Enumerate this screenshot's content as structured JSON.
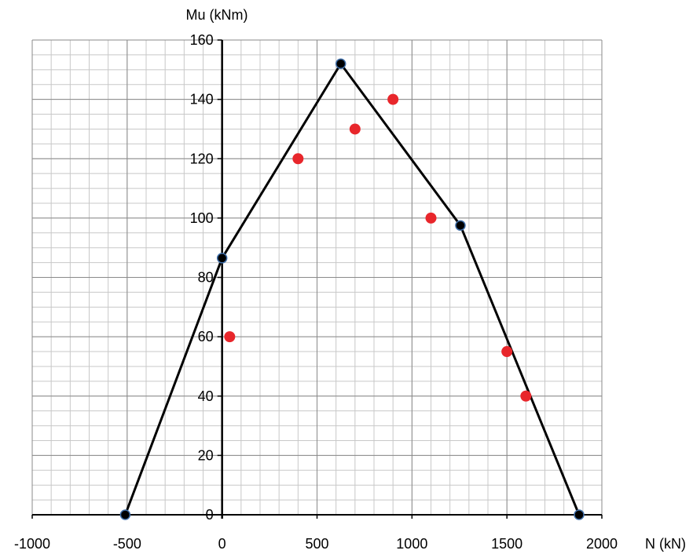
{
  "chart_data": {
    "type": "scatter",
    "title": "",
    "xlabel": "N (kN)",
    "ylabel": "Mu (kNm)",
    "xlim": [
      -1000,
      2000
    ],
    "ylim": [
      0,
      160
    ],
    "x_ticks": [
      -1000,
      -500,
      0,
      500,
      1000,
      1500,
      2000
    ],
    "y_ticks": [
      0,
      20,
      40,
      60,
      80,
      100,
      120,
      140,
      160
    ],
    "x_minor_step": 100,
    "y_minor_step": 5,
    "grid": true,
    "series": [
      {
        "style": "line-markers",
        "color": "#000000",
        "marker_color": "#000000",
        "points": [
          {
            "x": -510,
            "y": 0
          },
          {
            "x": 0,
            "y": 86.5
          },
          {
            "x": 625,
            "y": 152
          },
          {
            "x": 1255,
            "y": 97.5
          },
          {
            "x": 1880,
            "y": 0
          }
        ]
      },
      {
        "style": "markers",
        "color": "#e8262b",
        "points": [
          {
            "x": 40,
            "y": 60
          },
          {
            "x": 400,
            "y": 120
          },
          {
            "x": 700,
            "y": 130
          },
          {
            "x": 900,
            "y": 140
          },
          {
            "x": 1100,
            "y": 100
          },
          {
            "x": 1500,
            "y": 55
          },
          {
            "x": 1600,
            "y": 40
          }
        ]
      }
    ]
  }
}
